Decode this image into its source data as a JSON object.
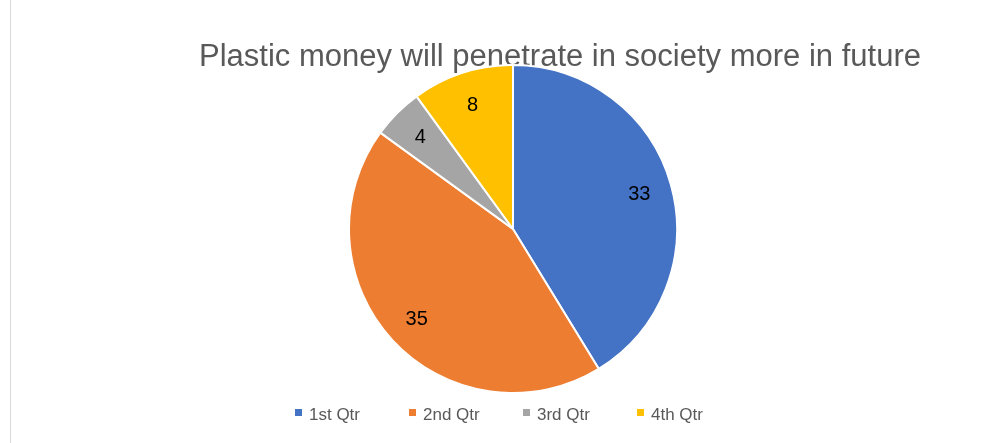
{
  "chart_data": {
    "type": "pie",
    "title": "Plastic money will penetrate in society more in future",
    "categories": [
      "1st Qtr",
      "2nd Qtr",
      "3rd Qtr",
      "4th Qtr"
    ],
    "values": [
      33,
      35,
      4,
      8
    ],
    "colors": [
      "#4472c4",
      "#ed7d31",
      "#a5a5a5",
      "#ffc000"
    ],
    "data_labels": true,
    "legend": "bottom"
  }
}
